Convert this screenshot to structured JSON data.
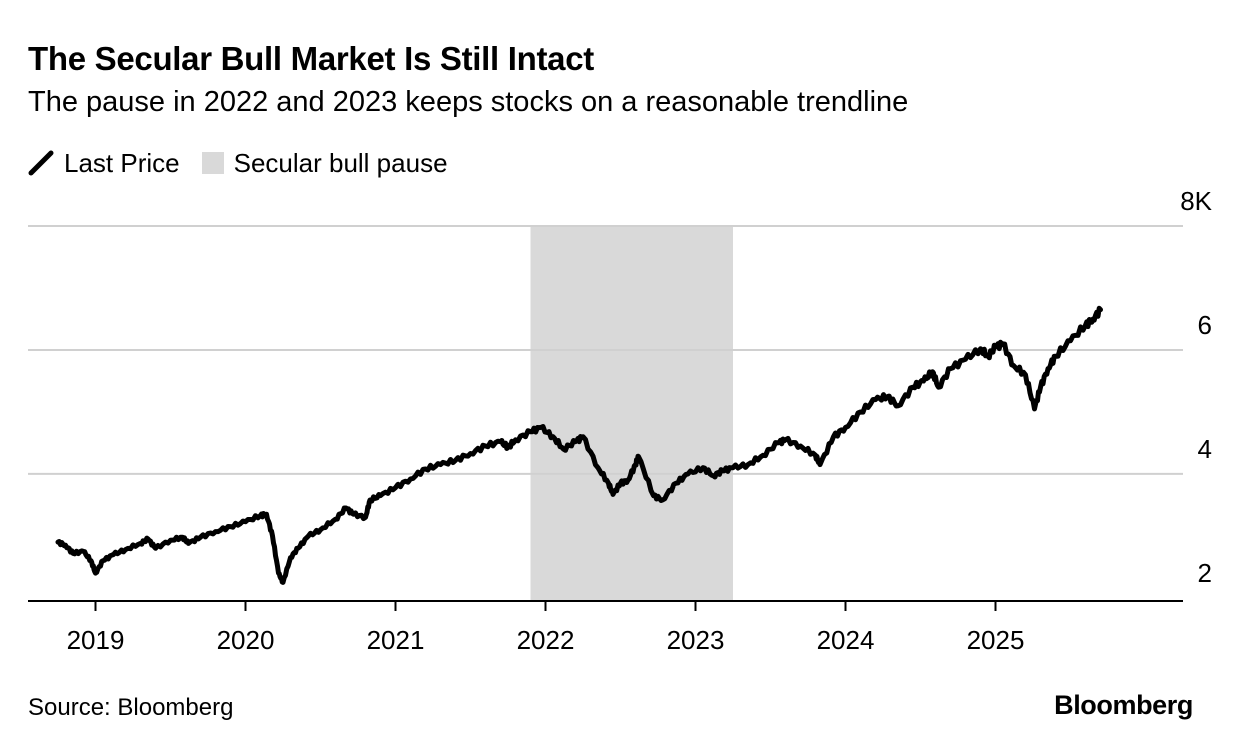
{
  "header": {
    "title": "The Secular Bull Market Is Still Intact",
    "subtitle": "The pause in 2022 and 2023 keeps stocks on a reasonable trendline"
  },
  "legend": {
    "line_label": "Last Price",
    "shade_label": "Secular bull pause"
  },
  "footer": {
    "source": "Source: Bloomberg",
    "brand": "Bloomberg"
  },
  "colors": {
    "line": "#000000",
    "shade": "#d9d9d9",
    "grid": "#d0d0d0",
    "axis": "#000000"
  },
  "chart_data": {
    "type": "line",
    "title": "The Secular Bull Market Is Still Intact",
    "subtitle": "The pause in 2022 and 2023 keeps stocks on a reasonable trendline",
    "xlabel": "",
    "ylabel": "",
    "xlim": [
      2018.55,
      2026.25
    ],
    "ylim": [
      1.95,
      8.0
    ],
    "y_ticks": [
      2,
      4,
      6,
      8
    ],
    "y_tick_labels": [
      "2",
      "4",
      "6",
      "8K"
    ],
    "x_ticks": [
      2019,
      2020,
      2021,
      2022,
      2023,
      2024,
      2025
    ],
    "x_tick_labels": [
      "2019",
      "2020",
      "2021",
      "2022",
      "2023",
      "2024",
      "2025"
    ],
    "grid": "horizontal",
    "legend_position": "top-left",
    "shaded_regions": [
      {
        "name": "Secular bull pause",
        "x_start": 2021.9,
        "x_end": 2023.25
      }
    ],
    "series": [
      {
        "name": "Last Price",
        "x": [
          2018.75,
          2018.8,
          2018.85,
          2018.92,
          2018.97,
          2019.0,
          2019.05,
          2019.12,
          2019.2,
          2019.3,
          2019.35,
          2019.4,
          2019.5,
          2019.58,
          2019.62,
          2019.7,
          2019.8,
          2019.9,
          2020.0,
          2020.1,
          2020.14,
          2020.18,
          2020.22,
          2020.25,
          2020.3,
          2020.35,
          2020.42,
          2020.5,
          2020.6,
          2020.67,
          2020.72,
          2020.8,
          2020.83,
          2020.9,
          2021.0,
          2021.1,
          2021.2,
          2021.3,
          2021.4,
          2021.5,
          2021.6,
          2021.7,
          2021.75,
          2021.8,
          2021.9,
          2021.97,
          2022.05,
          2022.12,
          2022.2,
          2022.25,
          2022.35,
          2022.42,
          2022.45,
          2022.5,
          2022.55,
          2022.6,
          2022.62,
          2022.72,
          2022.78,
          2022.87,
          2022.95,
          2023.05,
          2023.12,
          2023.18,
          2023.25,
          2023.35,
          2023.45,
          2023.55,
          2023.6,
          2023.7,
          2023.8,
          2023.83,
          2023.92,
          2024.0,
          2024.1,
          2024.2,
          2024.28,
          2024.35,
          2024.45,
          2024.52,
          2024.58,
          2024.62,
          2024.7,
          2024.8,
          2024.9,
          2024.95,
          2025.0,
          2025.05,
          2025.12,
          2025.2,
          2025.26,
          2025.3,
          2025.35,
          2025.4,
          2025.5,
          2025.6,
          2025.65,
          2025.7
        ],
        "values": [
          2.9,
          2.85,
          2.72,
          2.75,
          2.6,
          2.4,
          2.6,
          2.7,
          2.78,
          2.88,
          2.95,
          2.8,
          2.93,
          2.98,
          2.88,
          2.98,
          3.07,
          3.15,
          3.23,
          3.33,
          3.35,
          3.0,
          2.4,
          2.25,
          2.65,
          2.8,
          3.0,
          3.1,
          3.27,
          3.45,
          3.35,
          3.3,
          3.58,
          3.65,
          3.78,
          3.92,
          4.08,
          4.15,
          4.22,
          4.33,
          4.45,
          4.52,
          4.43,
          4.55,
          4.68,
          4.75,
          4.6,
          4.4,
          4.52,
          4.6,
          4.1,
          3.85,
          3.67,
          3.85,
          3.9,
          4.15,
          4.28,
          3.65,
          3.58,
          3.85,
          4.0,
          4.1,
          3.97,
          4.05,
          4.1,
          4.15,
          4.3,
          4.5,
          4.55,
          4.45,
          4.3,
          4.15,
          4.6,
          4.75,
          5.0,
          5.2,
          5.25,
          5.1,
          5.4,
          5.5,
          5.65,
          5.4,
          5.7,
          5.85,
          6.02,
          5.9,
          6.05,
          6.1,
          5.75,
          5.6,
          5.05,
          5.4,
          5.7,
          5.9,
          6.15,
          6.4,
          6.5,
          6.65
        ]
      }
    ]
  }
}
